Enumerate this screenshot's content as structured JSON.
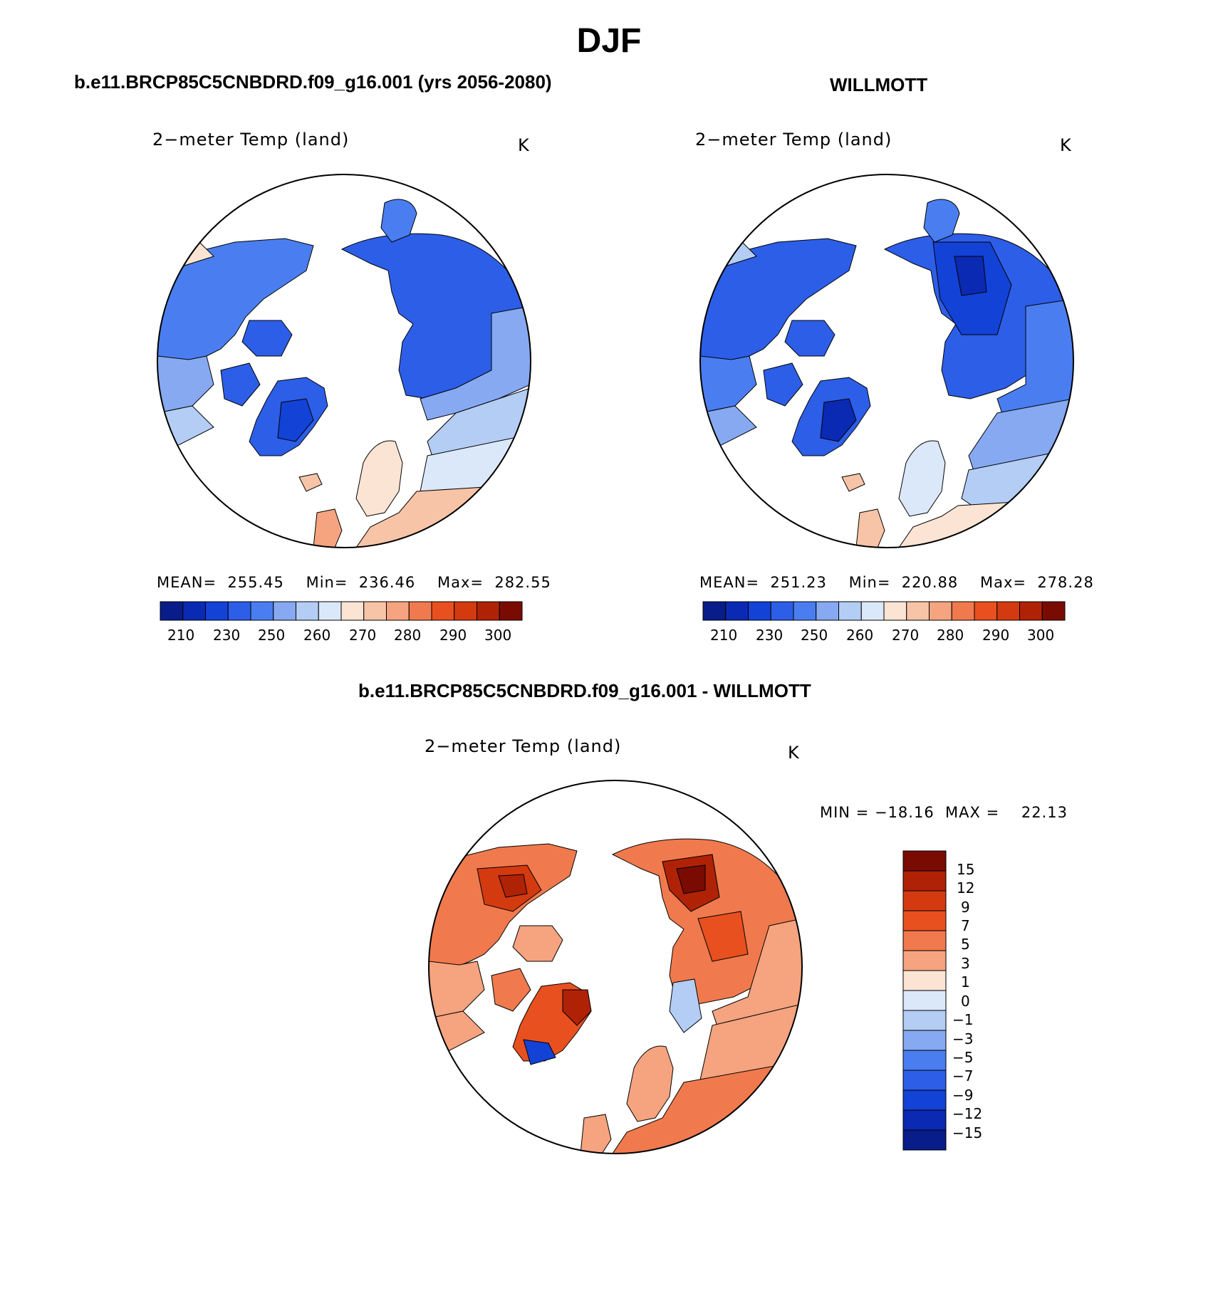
{
  "season": "DJF",
  "panels": [
    {
      "case_title": "b.e11.BRCP85C5CNBDRD.f09_g16.001 (yrs 2056-2080)",
      "variable": "2−meter Temp (land)",
      "units": "K",
      "stats": "MEAN=  255.45    Min=  236.46    Max=  282.55",
      "colorbar_ticks": [
        "210",
        "230",
        "250",
        "260",
        "270",
        "280",
        "290",
        "300"
      ]
    },
    {
      "case_title": "WILLMOTT",
      "variable": "2−meter Temp (land)",
      "units": "K",
      "stats": "MEAN=  251.23    Min=  220.88    Max=  278.28",
      "colorbar_ticks": [
        "210",
        "230",
        "250",
        "260",
        "270",
        "280",
        "290",
        "300"
      ]
    },
    {
      "case_title": "b.e11.BRCP85C5CNBDRD.f09_g16.001 - WILLMOTT",
      "variable": "2−meter Temp (land)",
      "units": "K",
      "stats": "MIN = −18.16  MAX =    22.13",
      "colorbar_ticks": [
        "15",
        "12",
        "9",
        "7",
        "5",
        "3",
        "1",
        "0",
        "−1",
        "−3",
        "−5",
        "−7",
        "−9",
        "−12",
        "−15"
      ]
    }
  ],
  "abs_palette": [
    "#081d8a",
    "#0a2ab3",
    "#1342d6",
    "#2d5ee8",
    "#4a7ef0",
    "#86a9f2",
    "#b4cdf5",
    "#dbe8fa",
    "#fbe4d3",
    "#f8c4a7",
    "#f5a47f",
    "#f07a4d",
    "#e8501f",
    "#d43a0f",
    "#b02206",
    "#7a0b03"
  ],
  "diff_palette": [
    "#7a0b03",
    "#b02206",
    "#d43a0f",
    "#e8501f",
    "#f07a4d",
    "#f5a47f",
    "#fbe4d3",
    "#dbe8fa",
    "#b4cdf5",
    "#86a9f2",
    "#4a7ef0",
    "#2d5ee8",
    "#1342d6",
    "#0a2ab3",
    "#081d8a"
  ]
}
